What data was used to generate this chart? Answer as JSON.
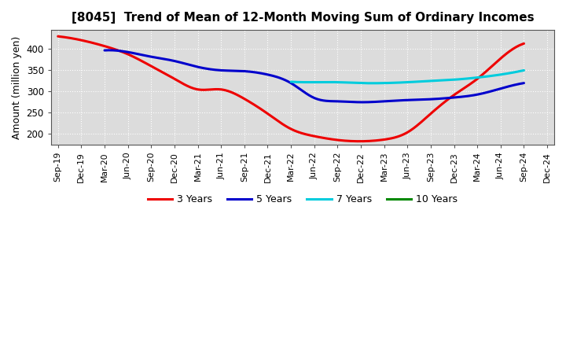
{
  "title": "[8045]  Trend of Mean of 12-Month Moving Sum of Ordinary Incomes",
  "ylabel": "Amount (million yen)",
  "ylim": [
    175,
    445
  ],
  "yticks": [
    200,
    250,
    300,
    350,
    400
  ],
  "background_color": "#FFFFFF",
  "plot_bg_color": "#DCDCDC",
  "grid_color": "#FFFFFF",
  "x_labels": [
    "Sep-19",
    "Dec-19",
    "Mar-20",
    "Jun-20",
    "Sep-20",
    "Dec-20",
    "Mar-21",
    "Jun-21",
    "Sep-21",
    "Dec-21",
    "Mar-22",
    "Jun-22",
    "Sep-22",
    "Dec-22",
    "Mar-23",
    "Jun-23",
    "Sep-23",
    "Dec-23",
    "Mar-24",
    "Jun-24",
    "Sep-24",
    "Dec-24"
  ],
  "series": {
    "3_years": {
      "color": "#EE0000",
      "label": "3 Years",
      "values": [
        430,
        421,
        407,
        388,
        360,
        330,
        305,
        305,
        283,
        248,
        212,
        195,
        186,
        183,
        187,
        204,
        248,
        292,
        330,
        378,
        413,
        null
      ]
    },
    "5_years": {
      "color": "#0000CC",
      "label": "5 Years",
      "values": [
        null,
        null,
        397,
        393,
        382,
        372,
        358,
        350,
        348,
        340,
        320,
        285,
        277,
        275,
        277,
        280,
        282,
        286,
        293,
        307,
        320,
        null
      ]
    },
    "7_years": {
      "color": "#00CCDD",
      "label": "7 Years",
      "values": [
        null,
        null,
        null,
        null,
        null,
        null,
        null,
        null,
        null,
        null,
        323,
        322,
        322,
        320,
        320,
        322,
        325,
        328,
        333,
        340,
        350,
        null
      ]
    },
    "10_years": {
      "color": "#008800",
      "label": "10 Years",
      "values": [
        null,
        null,
        null,
        null,
        null,
        null,
        null,
        null,
        null,
        null,
        null,
        null,
        null,
        null,
        null,
        null,
        null,
        null,
        null,
        null,
        null,
        null
      ]
    }
  }
}
